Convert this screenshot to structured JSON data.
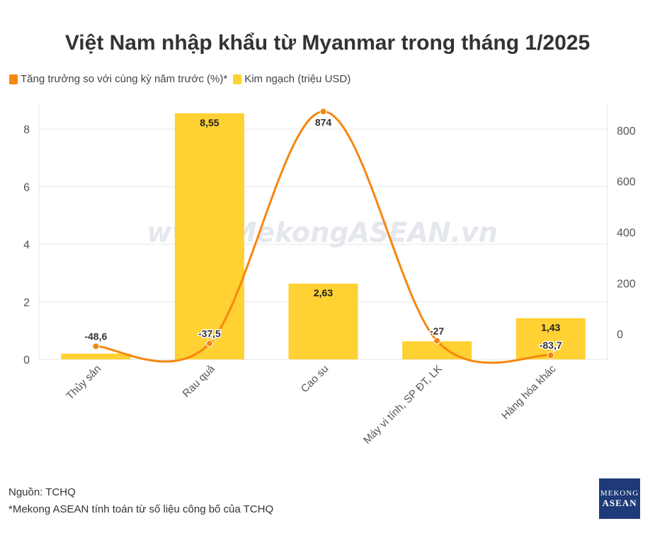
{
  "title": "Việt Nam nhập khẩu từ Myanmar trong tháng 1/2025",
  "watermark": "www.MekongASEAN.vn",
  "source": "Nguồn: TCHQ",
  "footnote": "*Mekong ASEAN tính toán từ số liệu công bố của TCHQ",
  "logo": {
    "line1": "MEKONG",
    "line2": "ASEAN"
  },
  "colors": {
    "bar": "#ffd133",
    "line": "#f5870f",
    "grid": "#e6e6e6"
  },
  "chart_data": {
    "type": "bar",
    "categories": [
      "Thủy sản",
      "Rau quả",
      "Cao su",
      "Máy vi tính, SP ĐT, LK",
      "Hàng hóa khác"
    ],
    "series": [
      {
        "name": "Kim ngạch (triệu USD)",
        "type": "bar",
        "axis": "left",
        "values": [
          0.2,
          8.55,
          2.63,
          0.63,
          1.43
        ],
        "labels": [
          "",
          "8,55",
          "2,63",
          "",
          "1,43"
        ]
      },
      {
        "name": "Tăng trưởng so với cùng kỳ năm trước (%)*",
        "type": "line",
        "axis": "right",
        "values": [
          -48.6,
          -37.5,
          874,
          -27,
          -83.7
        ],
        "labels": [
          "-48,6",
          "-37,5",
          "874",
          "-27",
          "-83,7"
        ]
      }
    ],
    "y_left": {
      "range": [
        0,
        8.84
      ],
      "ticks": [
        "0",
        "2",
        "4",
        "6",
        "8"
      ],
      "tick_values": [
        0,
        2,
        4,
        6,
        8
      ]
    },
    "y_right": {
      "range": [
        -100,
        900
      ],
      "ticks": [
        "0",
        "200",
        "400",
        "600",
        "800"
      ],
      "tick_values": [
        0,
        200,
        400,
        600,
        800
      ]
    },
    "legend_position": "top-left",
    "grid": true
  }
}
